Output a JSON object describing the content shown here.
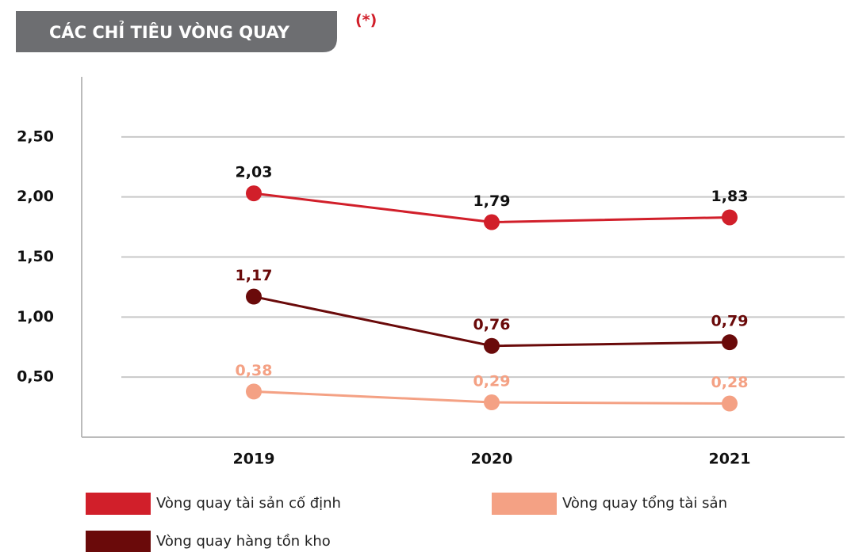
{
  "chart_data": {
    "type": "line",
    "title": "CÁC CHỈ TIÊU VÒNG QUAY",
    "note": "(*)",
    "categories": [
      "2019",
      "2020",
      "2021"
    ],
    "series": [
      {
        "name": "Vòng quay tài sản cố định",
        "color": "#d11f2a",
        "label_color": "#111111",
        "values": [
          2.03,
          1.79,
          1.83
        ],
        "value_labels": [
          "2,03",
          "1,79",
          "1,83"
        ]
      },
      {
        "name": "Vòng quay tổng tài sản",
        "color": "#f4a184",
        "label_color": "#f4a184",
        "values": [
          0.38,
          0.29,
          0.28
        ],
        "value_labels": [
          "0,38",
          "0,29",
          "0,28"
        ]
      },
      {
        "name": "Vòng quay hàng tồn kho",
        "color": "#6a0a0a",
        "label_color": "#6a0a0a",
        "values": [
          1.17,
          0.76,
          0.79
        ],
        "value_labels": [
          "1,17",
          "0,76",
          "0,79"
        ]
      }
    ],
    "ylim": [
      0,
      3
    ],
    "yticks": [
      {
        "value": 0.5,
        "label": "0,50"
      },
      {
        "value": 1,
        "label": "1,00"
      },
      {
        "value": 1.5,
        "label": "1,50"
      },
      {
        "value": 2,
        "label": "2,00"
      },
      {
        "value": 2.5,
        "label": "2,50"
      }
    ],
    "grid": true
  }
}
